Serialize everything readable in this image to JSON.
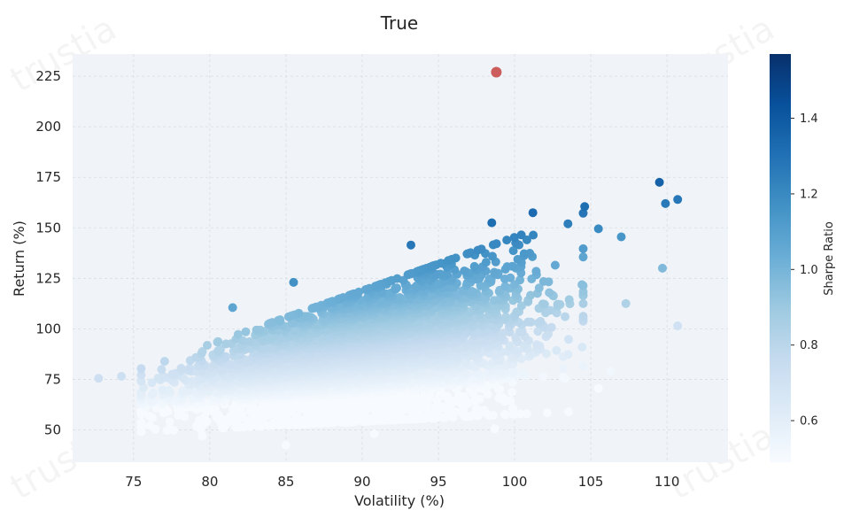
{
  "watermark": "trustia",
  "chart_data": {
    "type": "scatter",
    "title": "True",
    "xlabel": "Volatility (%)",
    "ylabel": "Return (%)",
    "xlim": [
      71,
      114
    ],
    "ylim": [
      34,
      236
    ],
    "x_ticks": [
      75,
      80,
      85,
      90,
      95,
      100,
      105,
      110
    ],
    "y_ticks": [
      50,
      75,
      100,
      125,
      150,
      175,
      200,
      225
    ],
    "grid": true,
    "colorbar": {
      "label": "Sharpe Ratio",
      "range": [
        0.49,
        1.57
      ],
      "ticks": [
        0.6,
        0.8,
        1.0,
        1.2,
        1.4
      ],
      "colormap": "Blues",
      "colors": [
        "#f7fbff",
        "#deebf7",
        "#c6dbef",
        "#9ecae1",
        "#6baed6",
        "#4292c6",
        "#2171b5",
        "#08519c",
        "#08306b"
      ]
    },
    "highlight_point": {
      "x": 98.8,
      "y": 227,
      "color": "#cd5c5c"
    },
    "point_count": 5000,
    "sample_points": [
      {
        "x": 72.7,
        "y": 75.5
      },
      {
        "x": 74.2,
        "y": 76.5
      },
      {
        "x": 81.5,
        "y": 110.5
      },
      {
        "x": 85.5,
        "y": 123
      },
      {
        "x": 93.2,
        "y": 141.5
      },
      {
        "x": 98.5,
        "y": 152.5
      },
      {
        "x": 101.2,
        "y": 157.5
      },
      {
        "x": 103.5,
        "y": 152
      },
      {
        "x": 104.6,
        "y": 160.5
      },
      {
        "x": 105.5,
        "y": 149.5
      },
      {
        "x": 107,
        "y": 145.5
      },
      {
        "x": 107.3,
        "y": 112.5
      },
      {
        "x": 109.5,
        "y": 172.5
      },
      {
        "x": 109.9,
        "y": 162
      },
      {
        "x": 110.7,
        "y": 164
      },
      {
        "x": 109.7,
        "y": 130
      },
      {
        "x": 110.7,
        "y": 101.5
      },
      {
        "x": 106.3,
        "y": 79
      },
      {
        "x": 105.5,
        "y": 70.5
      },
      {
        "x": 98.7,
        "y": 50.5
      },
      {
        "x": 90.8,
        "y": 48
      },
      {
        "x": 85,
        "y": 42.5
      },
      {
        "x": 79.5,
        "y": 47
      }
    ]
  }
}
